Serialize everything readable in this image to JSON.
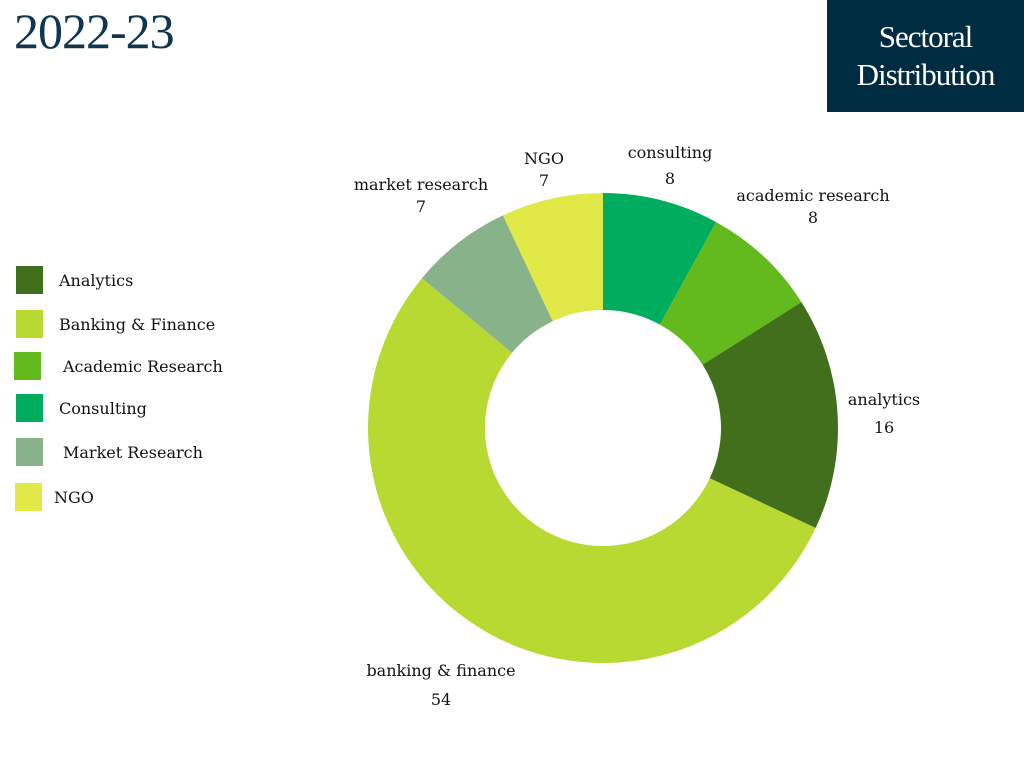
{
  "page": {
    "year": "2022-23",
    "title_line1": "Sectoral",
    "title_line2": "Distribution"
  },
  "chart_data": {
    "type": "pie",
    "donut": true,
    "categories": [
      "consulting",
      "academic research",
      "analytics",
      "banking & finance",
      "market research",
      "NGO"
    ],
    "values": [
      8,
      8,
      16,
      54,
      7,
      7
    ],
    "colors": [
      "#00ad5e",
      "#62ba1c",
      "#416f1c",
      "#b8d931",
      "#87b28a",
      "#e1e949"
    ],
    "legend": {
      "placement": "left",
      "items": [
        {
          "label": "Analytics",
          "color": "#416f1c"
        },
        {
          "label": "Banking & Finance",
          "color": "#b8d931"
        },
        {
          "label": "Academic Research",
          "color": "#62ba1c"
        },
        {
          "label": "Consulting",
          "color": "#00ad5e"
        },
        {
          "label": "Market Research",
          "color": "#87b28a"
        },
        {
          "label": "NGO",
          "color": "#e1e949"
        }
      ]
    }
  }
}
